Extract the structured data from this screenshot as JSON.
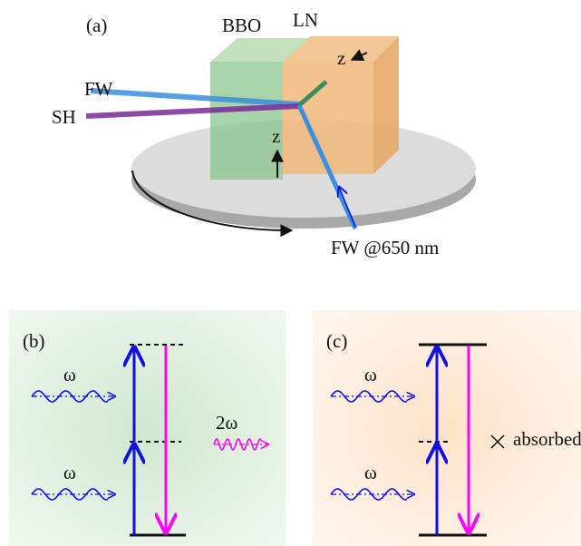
{
  "panel_a": {
    "label": "(a)",
    "crystals": [
      "BBO",
      "LN"
    ],
    "axes": [
      "z",
      "z"
    ],
    "beams": [
      "FW",
      "SH"
    ],
    "output": "FW @650 nm"
  },
  "panel_b": {
    "label": "(b)",
    "inputs": [
      "ω",
      "ω"
    ],
    "output": "2ω"
  },
  "panel_c": {
    "label": "(c)",
    "inputs": [
      "ω",
      "ω"
    ],
    "note": "absorbed"
  }
}
